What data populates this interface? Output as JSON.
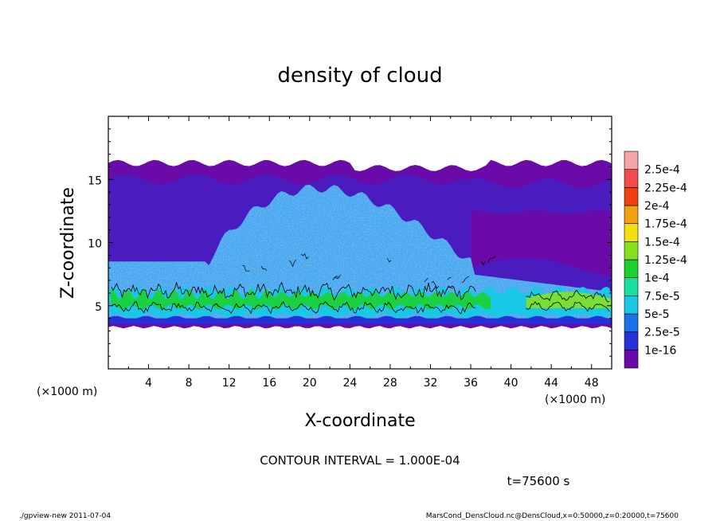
{
  "chart_data": {
    "type": "heatmap",
    "title": "density of cloud",
    "xlabel": "X-coordinate",
    "ylabel": "Z-coordinate",
    "x_unit": "(×1000 m)",
    "y_unit": "(×1000 m)",
    "xlim": [
      0,
      50
    ],
    "ylim": [
      0,
      20
    ],
    "x_ticks": [
      4,
      8,
      12,
      16,
      20,
      24,
      28,
      32,
      36,
      40,
      44,
      48
    ],
    "y_ticks": [
      5,
      10,
      15
    ],
    "contour_interval_text": "CONTOUR INTERVAL = 1.000E-04",
    "time_text": "t=75600 s",
    "colorbar": {
      "labels": [
        "1e-16",
        "2.5e-5",
        "5e-5",
        "7.5e-5",
        "1e-4",
        "1.25e-4",
        "1.5e-4",
        "1.75e-4",
        "2e-4",
        "2.25e-4",
        "2.5e-4"
      ],
      "colors": [
        "#6a0aa8",
        "#2830d8",
        "#1c70ec",
        "#18c8e6",
        "#18e0a0",
        "#1cd030",
        "#86e020",
        "#f0e010",
        "#f0a010",
        "#f04010",
        "#f04c4c",
        "#f4a4a4"
      ]
    },
    "field": {
      "cloud_base_km": 3.3,
      "cloud_top_km": 16.3,
      "dense_layer_km": [
        4.6,
        6.2
      ],
      "convective_core_x_km": [
        10,
        36
      ],
      "convective_core_top_km": 14.3
    }
  },
  "footer": {
    "left": "./gpview-new  2011-07-04",
    "right": "MarsCond_DensCloud.nc@DensCloud,x=0:50000,z=0:20000,t=75600"
  }
}
